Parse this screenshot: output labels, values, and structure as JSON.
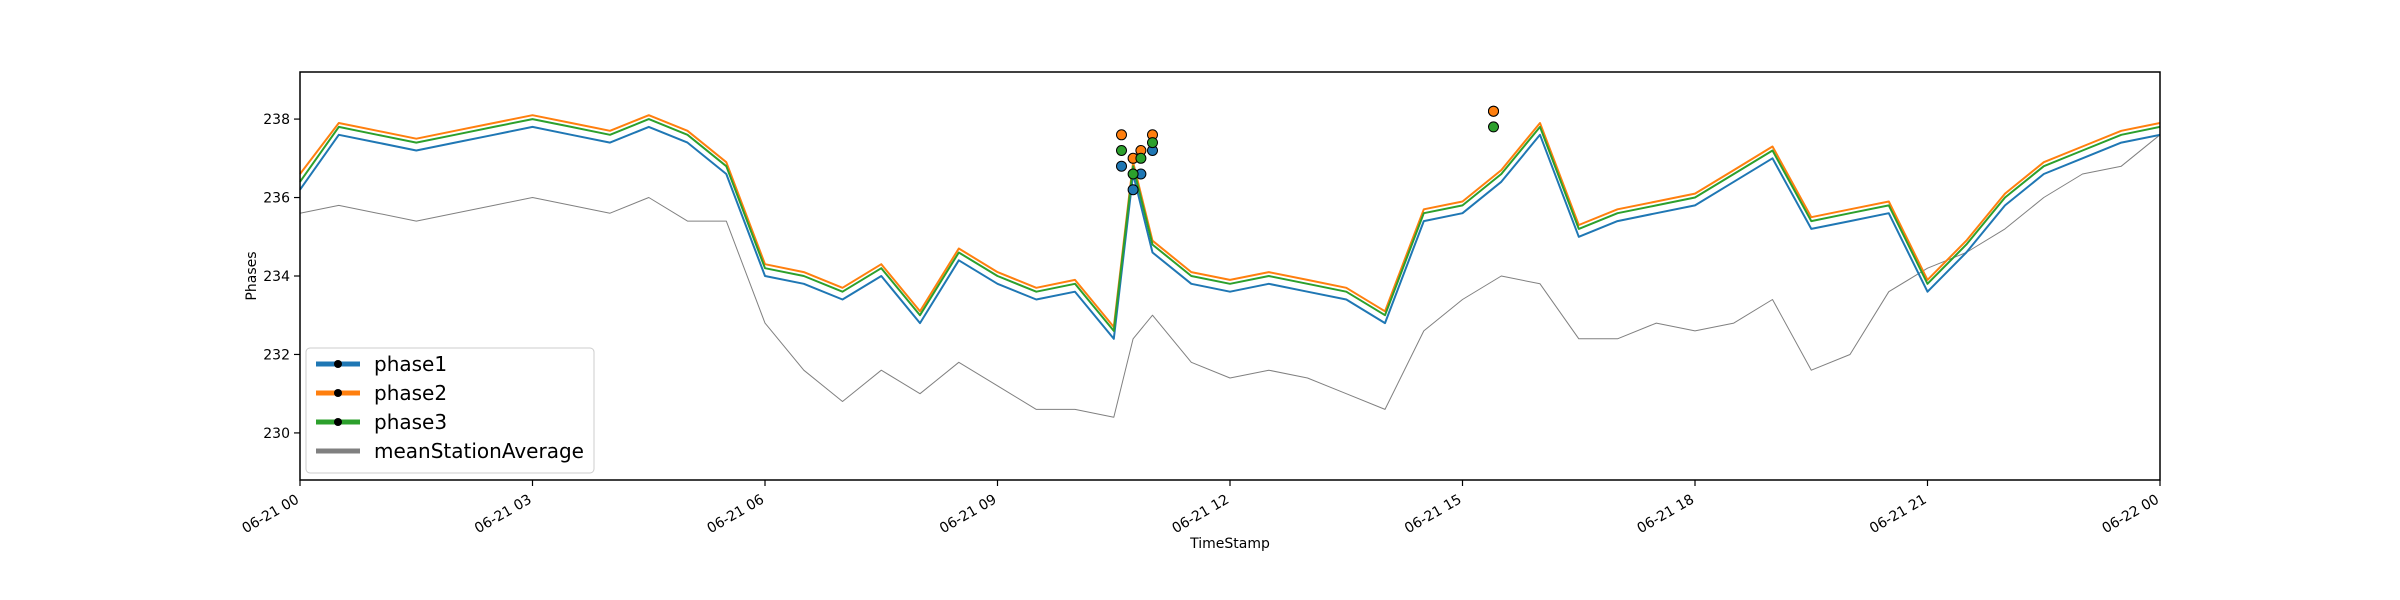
{
  "chart_data": {
    "type": "line",
    "title": "",
    "xlabel": "TimeStamp",
    "ylabel": "Phases",
    "xlim": [
      "06-21 00",
      "06-22 00"
    ],
    "ylim": [
      228.8,
      239.2
    ],
    "x_ticks": [
      "06-21 00",
      "06-21 03",
      "06-21 06",
      "06-21 09",
      "06-21 12",
      "06-21 15",
      "06-21 18",
      "06-21 21",
      "06-22 00"
    ],
    "y_ticks": [
      "230",
      "232",
      "234",
      "236",
      "238"
    ],
    "x_hours": [
      0,
      0.5,
      1,
      1.5,
      2,
      2.5,
      3,
      3.5,
      4,
      4.5,
      5,
      5.5,
      6,
      6.5,
      7,
      7.5,
      8,
      8.5,
      9,
      9.5,
      10,
      10.5,
      10.75,
      11,
      11.5,
      12,
      12.5,
      13,
      13.5,
      14,
      14.5,
      15,
      15.5,
      16,
      16.5,
      17,
      17.5,
      18,
      18.5,
      19,
      19.5,
      20,
      20.5,
      21,
      21.5,
      22,
      22.5,
      23,
      23.5,
      24
    ],
    "series": [
      {
        "name": "phase1",
        "color": "#1f77b4",
        "values": [
          236.2,
          237.6,
          237.4,
          237.2,
          237.4,
          237.6,
          237.8,
          237.6,
          237.4,
          237.8,
          237.4,
          236.6,
          234.0,
          233.8,
          233.4,
          234.0,
          232.8,
          234.4,
          233.8,
          233.4,
          233.6,
          232.4,
          236.6,
          234.6,
          233.8,
          233.6,
          233.8,
          233.6,
          233.4,
          232.8,
          235.4,
          235.6,
          236.4,
          237.6,
          235.0,
          235.4,
          235.6,
          235.8,
          236.4,
          237.0,
          235.2,
          235.4,
          235.6,
          233.6,
          234.6,
          235.8,
          236.6,
          237.0,
          237.4,
          237.6
        ]
      },
      {
        "name": "phase2",
        "color": "#ff7f0e",
        "values": [
          236.6,
          237.9,
          237.7,
          237.5,
          237.7,
          237.9,
          238.1,
          237.9,
          237.7,
          238.1,
          237.7,
          236.9,
          234.3,
          234.1,
          233.7,
          234.3,
          233.1,
          234.7,
          234.1,
          233.7,
          233.9,
          232.7,
          236.9,
          234.9,
          234.1,
          233.9,
          234.1,
          233.9,
          233.7,
          233.1,
          235.7,
          235.9,
          236.7,
          237.9,
          235.3,
          235.7,
          235.9,
          236.1,
          236.7,
          237.3,
          235.5,
          235.7,
          235.9,
          233.9,
          234.9,
          236.1,
          236.9,
          237.3,
          237.7,
          237.9
        ]
      },
      {
        "name": "phase3",
        "color": "#2ca02c",
        "values": [
          236.4,
          237.8,
          237.6,
          237.4,
          237.6,
          237.8,
          238.0,
          237.8,
          237.6,
          238.0,
          237.6,
          236.8,
          234.2,
          234.0,
          233.6,
          234.2,
          233.0,
          234.6,
          234.0,
          233.6,
          233.8,
          232.6,
          236.8,
          234.8,
          234.0,
          233.8,
          234.0,
          233.8,
          233.6,
          233.0,
          235.6,
          235.8,
          236.6,
          237.8,
          235.2,
          235.6,
          235.8,
          236.0,
          236.6,
          237.2,
          235.4,
          235.6,
          235.8,
          233.8,
          234.8,
          236.0,
          236.8,
          237.2,
          237.6,
          237.8
        ]
      },
      {
        "name": "meanStationAverage",
        "color": "#808080",
        "values": [
          235.6,
          235.8,
          235.6,
          235.4,
          235.6,
          235.8,
          236.0,
          235.8,
          235.6,
          236.0,
          235.4,
          235.4,
          232.8,
          231.6,
          230.8,
          231.6,
          231.0,
          231.8,
          231.2,
          230.6,
          230.6,
          230.4,
          232.4,
          233.0,
          231.8,
          231.4,
          231.6,
          231.4,
          231.0,
          230.6,
          232.6,
          233.4,
          234.0,
          233.8,
          232.4,
          232.4,
          232.8,
          232.6,
          232.8,
          233.4,
          231.6,
          232.0,
          233.6,
          234.2,
          234.6,
          235.2,
          236.0,
          236.6,
          236.8,
          237.6
        ]
      }
    ],
    "markers": [
      {
        "series": "phase1",
        "points": [
          [
            10.6,
            236.8
          ],
          [
            10.75,
            236.2
          ],
          [
            10.85,
            236.6
          ],
          [
            11.0,
            237.2
          ],
          [
            15.4,
            238.2
          ]
        ]
      },
      {
        "series": "phase2",
        "points": [
          [
            10.6,
            237.6
          ],
          [
            10.75,
            237.0
          ],
          [
            10.85,
            237.2
          ],
          [
            11.0,
            237.6
          ],
          [
            15.4,
            238.2
          ]
        ]
      },
      {
        "series": "phase3",
        "points": [
          [
            10.6,
            237.2
          ],
          [
            10.75,
            236.6
          ],
          [
            10.85,
            237.0
          ],
          [
            11.0,
            237.4
          ],
          [
            15.4,
            237.8
          ]
        ]
      }
    ],
    "legend": {
      "placement": "lower-left",
      "entries": [
        "phase1",
        "phase2",
        "phase3",
        "meanStationAverage"
      ]
    },
    "grid": false
  }
}
